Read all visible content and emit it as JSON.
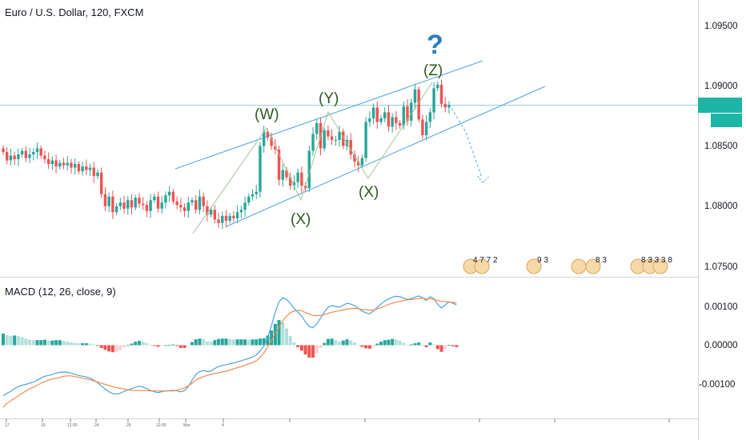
{
  "chart_data": [
    {
      "type": "candlestick",
      "title": "Euro / U.S. Dollar, 120, FXCM",
      "ylim": [
        1.0735,
        1.0975
      ],
      "y_ticks": [
        "1.09500",
        "1.09000",
        "1.08500",
        "1.08000",
        "1.07500"
      ],
      "x_tick_labels": [
        "17",
        "19",
        "12:00",
        "24",
        "26",
        "12:00",
        "Mar",
        "4"
      ],
      "grid": false,
      "price_line": 1.0883,
      "closes": [
        1.0845,
        1.0838,
        1.0842,
        1.0839,
        1.0843,
        1.0846,
        1.084,
        1.0843,
        1.0845,
        1.0848,
        1.0842,
        1.0839,
        1.0835,
        1.0838,
        1.0833,
        1.0836,
        1.0834,
        1.0836,
        1.0832,
        1.0835,
        1.0829,
        1.0833,
        1.083,
        1.0832,
        1.0825,
        1.0828,
        1.081,
        1.08,
        1.0808,
        1.0795,
        1.08,
        1.0803,
        1.0798,
        1.0805,
        1.0799,
        1.0807,
        1.0802,
        1.0801,
        1.0796,
        1.0805,
        1.0808,
        1.0798,
        1.0803,
        1.0809,
        1.0812,
        1.0804,
        1.0801,
        1.0799,
        1.0796,
        1.0803,
        1.0805,
        1.0797,
        1.0808,
        1.08,
        1.0793,
        1.0797,
        1.0789,
        1.0786,
        1.0792,
        1.0788,
        1.0792,
        1.079,
        1.0795,
        1.0797,
        1.0803,
        1.0808,
        1.081,
        1.0812,
        1.085,
        1.0862,
        1.0857,
        1.085,
        1.0847,
        1.0822,
        1.083,
        1.0824,
        1.0817,
        1.082,
        1.0828,
        1.0817,
        1.0815,
        1.0846,
        1.086,
        1.0869,
        1.0848,
        1.0863,
        1.0858,
        1.0855,
        1.0855,
        1.0862,
        1.085,
        1.0855,
        1.0843,
        1.0837,
        1.0834,
        1.084,
        1.087,
        1.0873,
        1.0882,
        1.087,
        1.0873,
        1.0878,
        1.0866,
        1.0874,
        1.0869,
        1.0867,
        1.0883,
        1.0871,
        1.0886,
        1.0897,
        1.0872,
        1.0859,
        1.087,
        1.0878,
        1.0898,
        1.0901,
        1.0885,
        1.0882,
        1.0884
      ]
    },
    {
      "type": "line",
      "title": "MACD (12, 26, close, 9)",
      "ylim": [
        -0.0017,
        0.0018
      ],
      "y_ticks": [
        "0.00100",
        "0.00000",
        "-0.00100"
      ],
      "series": [
        {
          "values": [
            -0.0013,
            -0.00124,
            -0.00119,
            -0.00112,
            -0.00107,
            -0.00103,
            -0.00101,
            -0.00098,
            -0.00095,
            -0.0009,
            -0.00085,
            -0.0008,
            -0.00078,
            -0.00075,
            -0.00072,
            -0.0007,
            -0.00069,
            -0.0007,
            -0.00072,
            -0.00075,
            -0.00078,
            -0.0008,
            -0.00082,
            -0.00085,
            -0.0009,
            -0.00097,
            -0.00105,
            -0.00113,
            -0.0012,
            -0.00125,
            -0.00126,
            -0.00124,
            -0.00119,
            -0.00115,
            -0.00112,
            -0.00108,
            -0.00106,
            -0.00108,
            -0.00112,
            -0.00117,
            -0.0012,
            -0.00122,
            -0.0012,
            -0.00118,
            -0.00117,
            -0.00116,
            -0.00118,
            -0.0012,
            -0.00117,
            -0.00107,
            -0.0009,
            -0.00075,
            -0.00068,
            -0.00065,
            -0.00068,
            -0.00066,
            -0.0006,
            -0.00055,
            -0.00052,
            -0.0005,
            -0.00048,
            -0.00046,
            -0.00043,
            -0.0004,
            -0.00037,
            -0.00034,
            -0.0003,
            -0.00025,
            -0.00015,
            -2e-05,
            0.0002,
            0.0005,
            0.00085,
            0.00112,
            0.00122,
            0.00118,
            0.00108,
            0.00095,
            0.00085,
            0.00075,
            0.0006,
            0.00048,
            0.00045,
            0.00055,
            0.0007,
            0.00085,
            0.00098,
            0.00102,
            0.001,
            0.00098,
            0.00103,
            0.00108,
            0.00106,
            0.00102,
            0.00095,
            0.00088,
            0.00083,
            0.00081,
            0.00088,
            0.00098,
            0.00106,
            0.00114,
            0.00119,
            0.00124,
            0.00126,
            0.00125,
            0.00121,
            0.00118,
            0.0012,
            0.00124,
            0.00127,
            0.00122,
            0.00115,
            0.00125,
            0.0012,
            0.00105,
            0.00096,
            0.00103,
            0.00112,
            0.00108,
            0.00104
          ]
        },
        {
          "values": [
            -0.0016,
            -0.0015,
            -0.00143,
            -0.00137,
            -0.00131,
            -0.00124,
            -0.00118,
            -0.00112,
            -0.00108,
            -0.00103,
            -0.00098,
            -0.00094,
            -0.0009,
            -0.00087,
            -0.00085,
            -0.00083,
            -0.0008,
            -0.00079,
            -0.00079,
            -0.00081,
            -0.00083,
            -0.00085,
            -0.00087,
            -0.00089,
            -0.00092,
            -0.00095,
            -0.00098,
            -0.00101,
            -0.00104,
            -0.00107,
            -0.00109,
            -0.00111,
            -0.00113,
            -0.00115,
            -0.00116,
            -0.00117,
            -0.00117,
            -0.00117,
            -0.00117,
            -0.00118,
            -0.00118,
            -0.00118,
            -0.00118,
            -0.00118,
            -0.00118,
            -0.00118,
            -0.00116,
            -0.00113,
            -0.0011,
            -0.00105,
            -0.00098,
            -0.0009,
            -0.00085,
            -0.00081,
            -0.00078,
            -0.00075,
            -0.00073,
            -0.00071,
            -0.00069,
            -0.00067,
            -0.00064,
            -0.00061,
            -0.00058,
            -0.00055,
            -0.00052,
            -0.00048,
            -0.00045,
            -0.0004,
            -0.00032,
            -0.0002,
            -5e-05,
            0.00012,
            0.0003,
            0.00047,
            0.00063,
            0.00075,
            0.00084,
            0.00088,
            0.0009,
            0.00089,
            0.00084,
            0.0008,
            0.00077,
            0.00076,
            0.00077,
            0.00079,
            0.00082,
            0.00085,
            0.00087,
            0.00089,
            0.00091,
            0.00093,
            0.00094,
            0.00095,
            0.00094,
            0.00092,
            0.00091,
            0.0009,
            0.00091,
            0.00094,
            0.00097,
            0.00101,
            0.00105,
            0.00108,
            0.00111,
            0.00113,
            0.00115,
            0.00117,
            0.00118,
            0.00119,
            0.0012,
            0.00121,
            0.0012,
            0.0012,
            0.00118,
            0.00115,
            0.00113,
            0.00112,
            0.00111,
            0.0011,
            0.00109
          ]
        }
      ],
      "histogram": [
        0.0003,
        0.00026,
        0.00024,
        0.00025,
        0.00024,
        0.00021,
        0.00017,
        0.00014,
        0.00013,
        0.00013,
        0.00013,
        0.00014,
        0.00012,
        0.00012,
        0.00013,
        0.00013,
        0.00011,
        9e-05,
        7e-05,
        6e-05,
        5e-05,
        5e-05,
        5e-05,
        4e-05,
        2e-05,
        -2e-05,
        -7e-05,
        -0.00012,
        -0.00016,
        -0.00018,
        -0.00017,
        -0.00013,
        -6e-05,
        0.0,
        4e-05,
        9e-05,
        0.00011,
        9e-05,
        5e-05,
        1e-05,
        -2e-05,
        -4e-05,
        -2e-05,
        0.0,
        1e-05,
        2e-05,
        -2e-05,
        -7e-05,
        -7e-05,
        -2e-05,
        8e-05,
        0.00015,
        0.00017,
        0.00016,
        0.0001,
        9e-05,
        0.00013,
        0.00016,
        0.00017,
        0.00017,
        0.00016,
        0.00015,
        0.00015,
        0.00015,
        0.00015,
        0.00014,
        0.00015,
        0.00015,
        0.00017,
        0.00018,
        0.00025,
        0.00038,
        0.00055,
        0.00065,
        0.00059,
        0.00043,
        0.00024,
        7e-05,
        -5e-05,
        -0.00014,
        -0.00024,
        -0.00032,
        -0.00032,
        -0.00021,
        -7e-05,
        6e-05,
        0.00016,
        0.00017,
        0.00013,
        9e-05,
        0.00012,
        0.00015,
        0.00012,
        7e-05,
        1e-05,
        -4e-05,
        -8e-05,
        -9e-05,
        -3e-05,
        4e-05,
        9e-05,
        0.00013,
        0.00014,
        0.00016,
        0.00015,
        0.00012,
        6e-05,
        1e-05,
        2e-05,
        5e-05,
        7e-05,
        1e-05,
        -5e-05,
        7e-05,
        2e-05,
        -0.0001,
        -0.00017,
        -9e-05,
        1e-05,
        -3e-05,
        -5e-05
      ]
    }
  ],
  "wave_labels": [
    "(W)",
    "(X)",
    "(Y)",
    "(X)",
    "(Z)"
  ],
  "question_mark": "?",
  "event_badges": [
    "4 7 7 2",
    "9 3",
    "8 3",
    "8 3 3 3 8"
  ],
  "colors": {
    "up": "#26a69a",
    "down": "#ef5350",
    "channel": "#4aa3df",
    "wave_line": "#a3c495",
    "macd": "#4aa3df",
    "signal": "#f5894a",
    "price_tag": "#1db5a5"
  }
}
